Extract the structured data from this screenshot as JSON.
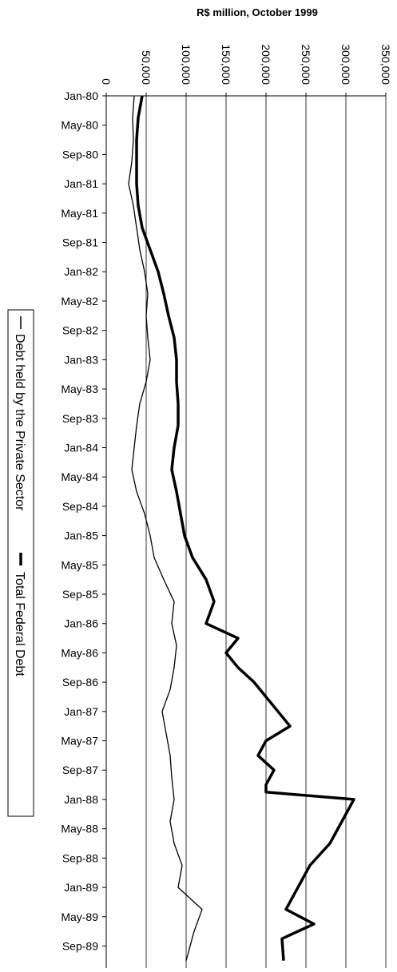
{
  "chart_data": {
    "type": "line",
    "orientation": "rotated-90",
    "title": "R$ million, October 1999",
    "value_axis": {
      "min": 0,
      "max": 350000,
      "ticks": [
        "0",
        "50,000",
        "100,000",
        "150,000",
        "200,000",
        "250,000",
        "300,000",
        "350,000"
      ],
      "tick_values": [
        0,
        50000,
        100000,
        150000,
        200000,
        250000,
        300000,
        350000
      ],
      "gridlines": true
    },
    "category_axis": {
      "start": "Jan-80",
      "end": "Nov-89",
      "tick_labels": [
        "Jan-80",
        "May-80",
        "Sep-80",
        "Jan-81",
        "May-81",
        "Sep-81",
        "Jan-82",
        "May-82",
        "Sep-82",
        "Jan-83",
        "May-83",
        "Sep-83",
        "Jan-84",
        "May-84",
        "Sep-84",
        "Jan-85",
        "May-85",
        "Sep-85",
        "Jan-86",
        "May-86",
        "Sep-86",
        "Jan-87",
        "May-87",
        "Sep-87",
        "Jan-88",
        "May-88",
        "Sep-88",
        "Jan-89",
        "May-89",
        "Sep-89"
      ]
    },
    "legend_position": "left",
    "series": [
      {
        "name": "Debt held by the Private Sector",
        "line": "thin",
        "points": [
          [
            "Jan-80",
            35000
          ],
          [
            "Apr-80",
            33000
          ],
          [
            "Jul-80",
            34000
          ],
          [
            "Oct-80",
            32000
          ],
          [
            "Jan-81",
            28000
          ],
          [
            "Apr-81",
            34000
          ],
          [
            "Jul-81",
            38000
          ],
          [
            "Oct-81",
            42000
          ],
          [
            "Jan-82",
            48000
          ],
          [
            "Apr-82",
            52000
          ],
          [
            "Jul-82",
            50000
          ],
          [
            "Oct-82",
            52000
          ],
          [
            "Jan-83",
            55000
          ],
          [
            "Apr-83",
            50000
          ],
          [
            "Jul-83",
            42000
          ],
          [
            "Oct-83",
            38000
          ],
          [
            "Jan-84",
            35000
          ],
          [
            "Apr-84",
            32000
          ],
          [
            "Jul-84",
            38000
          ],
          [
            "Oct-84",
            48000
          ],
          [
            "Jan-85",
            55000
          ],
          [
            "Apr-85",
            60000
          ],
          [
            "Jul-85",
            72000
          ],
          [
            "Oct-85",
            85000
          ],
          [
            "Jan-86",
            82000
          ],
          [
            "Apr-86",
            88000
          ],
          [
            "Jul-86",
            85000
          ],
          [
            "Oct-86",
            80000
          ],
          [
            "Jan-87",
            70000
          ],
          [
            "Apr-87",
            75000
          ],
          [
            "Jul-87",
            80000
          ],
          [
            "Oct-87",
            82000
          ],
          [
            "Jan-88",
            85000
          ],
          [
            "Apr-88",
            80000
          ],
          [
            "Jul-88",
            85000
          ],
          [
            "Oct-88",
            95000
          ],
          [
            "Jan-89",
            90000
          ],
          [
            "Apr-89",
            120000
          ],
          [
            "Jul-89",
            110000
          ],
          [
            "Nov-89",
            100000
          ]
        ]
      },
      {
        "name": "Total Federal Debt",
        "line": "thick",
        "points": [
          [
            "Jan-80",
            45000
          ],
          [
            "Apr-80",
            40000
          ],
          [
            "Jul-80",
            38000
          ],
          [
            "Oct-80",
            38000
          ],
          [
            "Jan-81",
            38000
          ],
          [
            "Apr-81",
            40000
          ],
          [
            "Jul-81",
            45000
          ],
          [
            "Oct-81",
            55000
          ],
          [
            "Jan-82",
            65000
          ],
          [
            "Apr-82",
            72000
          ],
          [
            "Jul-82",
            78000
          ],
          [
            "Oct-82",
            85000
          ],
          [
            "Jan-83",
            88000
          ],
          [
            "Apr-83",
            88000
          ],
          [
            "Jul-83",
            90000
          ],
          [
            "Oct-83",
            90000
          ],
          [
            "Jan-84",
            85000
          ],
          [
            "Apr-84",
            82000
          ],
          [
            "Jul-84",
            88000
          ],
          [
            "Oct-84",
            93000
          ],
          [
            "Jan-85",
            98000
          ],
          [
            "Apr-85",
            108000
          ],
          [
            "Jul-85",
            125000
          ],
          [
            "Oct-85",
            135000
          ],
          [
            "Jan-86",
            125000
          ],
          [
            "Mar-86",
            165000
          ],
          [
            "May-86",
            150000
          ],
          [
            "Jul-86",
            165000
          ],
          [
            "Sep-86",
            185000
          ],
          [
            "Nov-86",
            200000
          ],
          [
            "Jan-87",
            215000
          ],
          [
            "Mar-87",
            230000
          ],
          [
            "May-87",
            200000
          ],
          [
            "Jul-87",
            190000
          ],
          [
            "Sep-87",
            210000
          ],
          [
            "Nov-87",
            200000
          ],
          [
            "Dec-87",
            200000
          ],
          [
            "Jan-88",
            310000
          ],
          [
            "Apr-88",
            295000
          ],
          [
            "Jul-88",
            280000
          ],
          [
            "Oct-88",
            255000
          ],
          [
            "Jan-89",
            240000
          ],
          [
            "Apr-89",
            225000
          ],
          [
            "Jun-89",
            260000
          ],
          [
            "Aug-89",
            220000
          ],
          [
            "Nov-89",
            222000
          ]
        ]
      }
    ]
  }
}
